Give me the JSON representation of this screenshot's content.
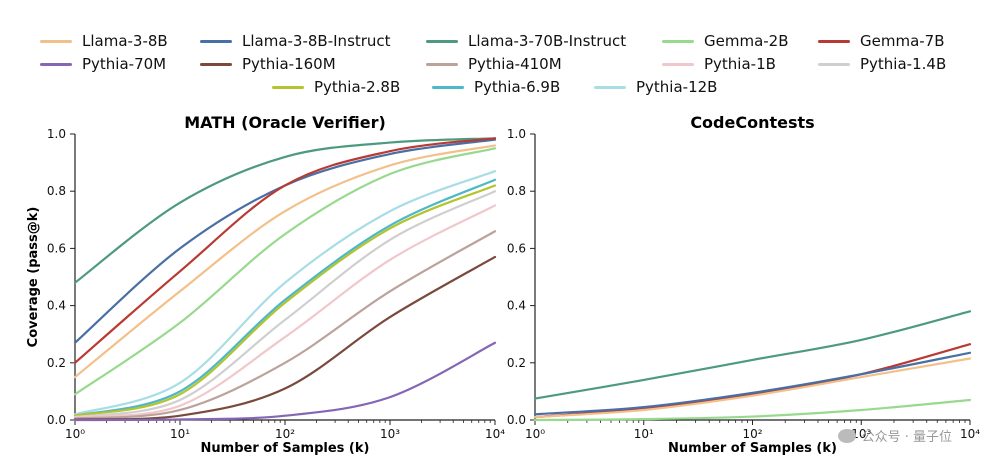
{
  "legend": [
    {
      "name": "Llama-3-8B",
      "color": "#f2c08a"
    },
    {
      "name": "Llama-3-8B-Instruct",
      "color": "#4a6fa5"
    },
    {
      "name": "Llama-3-70B-Instruct",
      "color": "#4e9a7e"
    },
    {
      "name": "Gemma-2B",
      "color": "#98d98e"
    },
    {
      "name": "Gemma-7B",
      "color": "#b83a32"
    },
    {
      "name": "Pythia-70M",
      "color": "#8466b5"
    },
    {
      "name": "Pythia-160M",
      "color": "#7a4a3c"
    },
    {
      "name": "Pythia-410M",
      "color": "#bba29a"
    },
    {
      "name": "Pythia-1B",
      "color": "#f0c8cc"
    },
    {
      "name": "Pythia-1.4B",
      "color": "#cfcfcf"
    },
    {
      "name": "Pythia-2.8B",
      "color": "#b4c42e"
    },
    {
      "name": "Pythia-6.9B",
      "color": "#4cb8c8"
    },
    {
      "name": "Pythia-12B",
      "color": "#a9dde6"
    }
  ],
  "watermark": "公众号 · 量子位",
  "chart_data": [
    {
      "type": "line",
      "title": "MATH (Oracle Verifier)",
      "xlabel": "Number of Samples (k)",
      "ylabel": "Coverage (pass@k)",
      "xscale": "log",
      "xlim": [
        1,
        10000
      ],
      "ylim": [
        0,
        1.0
      ],
      "x": [
        1,
        10,
        100,
        1000,
        10000
      ],
      "yticks": [
        "0.0",
        "0.2",
        "0.4",
        "0.6",
        "0.8",
        "1.0"
      ],
      "xticks": [
        "10⁰",
        "10¹",
        "10²",
        "10³",
        "10⁴"
      ],
      "series": [
        {
          "name": "Llama-3-70B-Instruct",
          "color": "#4e9a7e",
          "values": [
            0.48,
            0.76,
            0.92,
            0.97,
            0.985
          ]
        },
        {
          "name": "Llama-3-8B-Instruct",
          "color": "#4a6fa5",
          "values": [
            0.27,
            0.6,
            0.82,
            0.93,
            0.98
          ]
        },
        {
          "name": "Gemma-7B",
          "color": "#b83a32",
          "values": [
            0.2,
            0.52,
            0.82,
            0.94,
            0.985
          ]
        },
        {
          "name": "Llama-3-8B",
          "color": "#f2c08a",
          "values": [
            0.15,
            0.45,
            0.73,
            0.89,
            0.96
          ]
        },
        {
          "name": "Gemma-2B",
          "color": "#98d98e",
          "values": [
            0.09,
            0.34,
            0.65,
            0.86,
            0.95
          ]
        },
        {
          "name": "Pythia-12B",
          "color": "#a9dde6",
          "values": [
            0.02,
            0.13,
            0.48,
            0.73,
            0.87
          ]
        },
        {
          "name": "Pythia-6.9B",
          "color": "#4cb8c8",
          "values": [
            0.015,
            0.1,
            0.42,
            0.68,
            0.84
          ]
        },
        {
          "name": "Pythia-2.8B",
          "color": "#b4c42e",
          "values": [
            0.015,
            0.09,
            0.41,
            0.67,
            0.82
          ]
        },
        {
          "name": "Pythia-1.4B",
          "color": "#cfcfcf",
          "values": [
            0.01,
            0.07,
            0.35,
            0.63,
            0.8
          ]
        },
        {
          "name": "Pythia-1B",
          "color": "#f0c8cc",
          "values": [
            0.01,
            0.05,
            0.29,
            0.56,
            0.75
          ]
        },
        {
          "name": "Pythia-410M",
          "color": "#bba29a",
          "values": [
            0.005,
            0.035,
            0.2,
            0.45,
            0.66
          ]
        },
        {
          "name": "Pythia-160M",
          "color": "#7a4a3c",
          "values": [
            0.002,
            0.015,
            0.11,
            0.36,
            0.57
          ]
        },
        {
          "name": "Pythia-70M",
          "color": "#8466b5",
          "values": [
            0.0,
            0.002,
            0.015,
            0.08,
            0.27
          ]
        }
      ]
    },
    {
      "type": "line",
      "title": "CodeContests",
      "xlabel": "Number of Samples (k)",
      "ylabel": "",
      "xscale": "log",
      "xlim": [
        1,
        10000
      ],
      "ylim": [
        0,
        1.0
      ],
      "x": [
        1,
        10,
        100,
        1000,
        10000
      ],
      "yticks": [
        "0.0",
        "0.2",
        "0.4",
        "0.6",
        "0.8",
        "1.0"
      ],
      "xticks": [
        "10⁰",
        "10¹",
        "10²",
        "10³",
        "10⁴"
      ],
      "series": [
        {
          "name": "Llama-3-70B-Instruct",
          "color": "#4e9a7e",
          "values": [
            0.075,
            0.14,
            0.21,
            0.28,
            0.38
          ]
        },
        {
          "name": "Gemma-7B",
          "color": "#b83a32",
          "values": [
            0.01,
            0.04,
            0.09,
            0.16,
            0.265
          ]
        },
        {
          "name": "Llama-3-8B-Instruct",
          "color": "#4a6fa5",
          "values": [
            0.02,
            0.045,
            0.095,
            0.16,
            0.235
          ]
        },
        {
          "name": "Llama-3-8B",
          "color": "#f2c08a",
          "values": [
            0.01,
            0.035,
            0.085,
            0.15,
            0.215
          ]
        },
        {
          "name": "Gemma-2B",
          "color": "#98d98e",
          "values": [
            0.0,
            0.003,
            0.012,
            0.035,
            0.07
          ]
        }
      ]
    }
  ]
}
